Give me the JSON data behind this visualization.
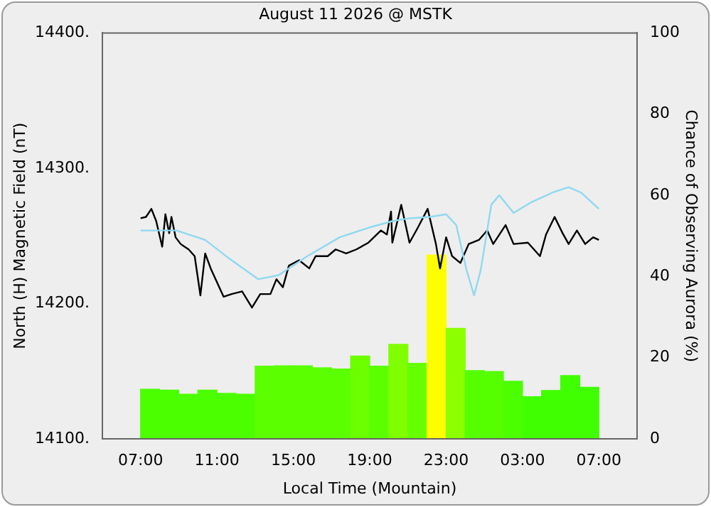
{
  "chart_data": {
    "type": "line",
    "title": "August 11 2026 @ MSTK",
    "xlabel": "Local Time (Mountain)",
    "ylabel": "North (H) Magnetic Field (nT)",
    "y2label": "Chance of Observing Aurora (%)",
    "xlim": [
      "2026-08-11T07:00",
      "2026-08-12T07:00"
    ],
    "xticks": [
      {
        "value": "2026-08-11T07:00",
        "label": "07:00"
      },
      {
        "value": "2026-08-11T11:00",
        "label": "11:00"
      },
      {
        "value": "2026-08-11T15:00",
        "label": "15:00"
      },
      {
        "value": "2026-08-11T19:00",
        "label": "19:00"
      },
      {
        "value": "2026-08-11T23:00",
        "label": "23:00"
      },
      {
        "value": "2026-08-12T03:00",
        "label": "03:00"
      },
      {
        "value": "2026-08-12T07:00",
        "label": "07:00"
      }
    ],
    "ylim": [
      14100,
      14400
    ],
    "yticks": [
      {
        "value": 14100,
        "label": "14100."
      },
      {
        "value": 14200,
        "label": "14200."
      },
      {
        "value": 14300,
        "label": "14300."
      },
      {
        "value": 14400,
        "label": "14400."
      }
    ],
    "y2lim": [
      0,
      100
    ],
    "y2ticks": [
      0,
      20,
      40,
      60,
      80,
      100
    ],
    "grid": false,
    "legend": false,
    "marker": "none",
    "series": [
      {
        "type": "bar",
        "axis": "y2",
        "x": [
          "2026-08-11T07:30",
          "2026-08-11T08:30",
          "2026-08-11T09:30",
          "2026-08-11T10:30",
          "2026-08-11T11:30",
          "2026-08-11T12:30",
          "2026-08-11T13:30",
          "2026-08-11T14:30",
          "2026-08-11T15:30",
          "2026-08-11T16:30",
          "2026-08-11T17:30",
          "2026-08-11T18:30",
          "2026-08-11T19:30",
          "2026-08-11T20:30",
          "2026-08-11T21:30",
          "2026-08-11T22:30",
          "2026-08-11T23:30",
          "2026-08-12T00:30",
          "2026-08-12T01:30",
          "2026-08-12T02:30",
          "2026-08-12T03:30",
          "2026-08-12T04:30",
          "2026-08-12T05:30",
          "2026-08-12T06:30"
        ],
        "values": [
          12.2,
          12,
          11,
          12,
          11.2,
          11,
          17.9,
          18,
          18,
          17.5,
          17.2,
          20.4,
          17.9,
          23.3,
          18.6,
          45.3,
          27.2,
          16.8,
          16.6,
          14.2,
          10.4,
          11.9,
          15.6,
          12.7
        ],
        "colors": [
          "#4cff00",
          "#4cff00",
          "#4cff00",
          "#4cff00",
          "#4cff00",
          "#4cff00",
          "#5cff00",
          "#5cff00",
          "#5cff00",
          "#5cff00",
          "#5cff00",
          "#6cff00",
          "#5cff00",
          "#80ff00",
          "#66ff00",
          "#ffff00",
          "#8cff00",
          "#55ff00",
          "#55ff00",
          "#4cff00",
          "#40ff00",
          "#40ff00",
          "#40ff00",
          "#40ff00"
        ]
      },
      {
        "color": "#8fd8f0",
        "x": [
          "2026-08-11T07:00",
          "2026-08-11T08:53",
          "2026-08-11T10:23",
          "2026-08-11T11:40",
          "2026-08-11T13:10",
          "2026-08-11T14:14",
          "2026-08-11T15:44",
          "2026-08-11T17:26",
          "2026-08-11T18:56",
          "2026-08-11T20:13",
          "2026-08-11T21:05",
          "2026-08-11T22:09",
          "2026-08-11T23:00",
          "2026-08-11T23:32",
          "2026-08-12T00:04",
          "2026-08-12T00:28",
          "2026-08-12T00:49",
          "2026-08-12T01:22",
          "2026-08-12T01:47",
          "2026-08-12T02:32",
          "2026-08-12T03:29",
          "2026-08-12T04:34",
          "2026-08-12T05:25",
          "2026-08-12T06:04",
          "2026-08-12T07:00"
        ],
        "values": [
          14254,
          14254,
          14247,
          14233,
          14218,
          14221,
          14235,
          14249,
          14256,
          14261,
          14263,
          14264,
          14266,
          14258,
          14225,
          14206,
          14225,
          14273,
          14280,
          14267,
          14275,
          14282,
          14286,
          14282,
          14270
        ]
      },
      {
        "color": "#000000",
        "x": [
          "2026-08-11T07:00",
          "2026-08-11T07:17",
          "2026-08-11T07:34",
          "2026-08-11T07:49",
          "2026-08-11T08:08",
          "2026-08-11T08:18",
          "2026-08-11T08:30",
          "2026-08-11T08:37",
          "2026-08-11T08:50",
          "2026-08-11T09:06",
          "2026-08-11T09:31",
          "2026-08-11T09:50",
          "2026-08-11T10:08",
          "2026-08-11T10:23",
          "2026-08-11T10:42",
          "2026-08-11T11:21",
          "2026-08-11T11:46",
          "2026-08-11T12:19",
          "2026-08-11T12:50",
          "2026-08-11T13:16",
          "2026-08-11T13:48",
          "2026-08-11T14:07",
          "2026-08-11T14:27",
          "2026-08-11T14:46",
          "2026-08-11T15:18",
          "2026-08-11T15:50",
          "2026-08-11T16:10",
          "2026-08-11T16:48",
          "2026-08-11T17:13",
          "2026-08-11T17:46",
          "2026-08-11T18:18",
          "2026-08-11T18:56",
          "2026-08-11T19:35",
          "2026-08-11T19:54",
          "2026-08-11T20:07",
          "2026-08-11T20:11",
          "2026-08-11T20:39",
          "2026-08-11T21:05",
          "2026-08-11T21:31",
          "2026-08-11T22:02",
          "2026-08-11T22:28",
          "2026-08-11T22:41",
          "2026-08-11T23:00",
          "2026-08-11T23:19",
          "2026-08-11T23:45",
          "2026-08-12T00:11",
          "2026-08-12T00:43",
          "2026-08-12T01:09",
          "2026-08-12T01:28",
          "2026-08-12T02:07",
          "2026-08-12T02:32",
          "2026-08-12T03:17",
          "2026-08-12T03:55",
          "2026-08-12T04:14",
          "2026-08-12T04:41",
          "2026-08-12T05:06",
          "2026-08-12T05:25",
          "2026-08-12T05:51",
          "2026-08-12T06:17",
          "2026-08-12T06:42",
          "2026-08-12T07:00"
        ],
        "values": [
          14263,
          14264,
          14270,
          14261,
          14242,
          14266,
          14252,
          14264,
          14249,
          14244,
          14240,
          14235,
          14206,
          14237,
          14225,
          14205,
          14207,
          14209,
          14197,
          14207,
          14207,
          14218,
          14212,
          14228,
          14232,
          14226,
          14235,
          14235,
          14240,
          14237,
          14240,
          14245,
          14254,
          14251,
          14268,
          14245,
          14273,
          14245,
          14256,
          14270,
          14244,
          14226,
          14249,
          14235,
          14230,
          14244,
          14247,
          14254,
          14244,
          14258,
          14244,
          14245,
          14235,
          14251,
          14264,
          14252,
          14244,
          14254,
          14244,
          14249,
          14247
        ]
      }
    ]
  }
}
